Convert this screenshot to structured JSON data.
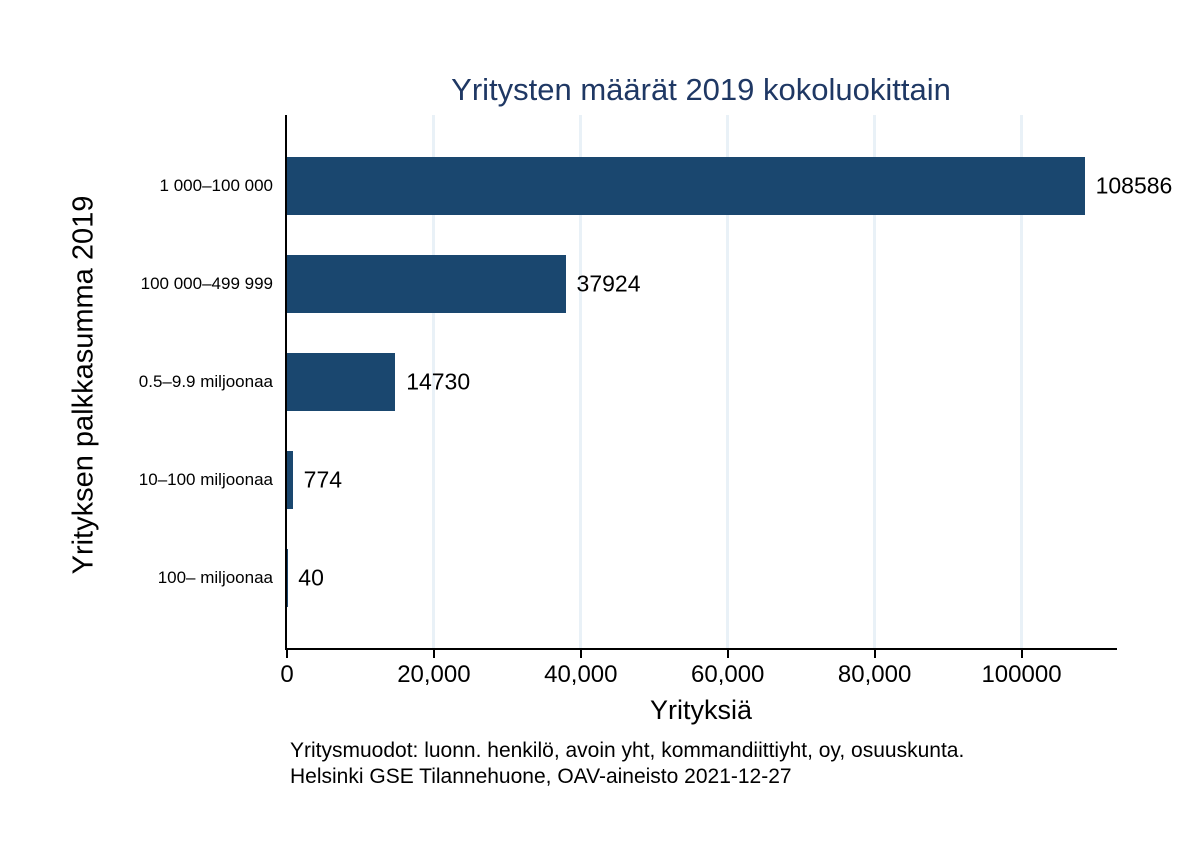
{
  "chart_data": {
    "type": "bar",
    "orientation": "horizontal",
    "title": "Yritysten määrät 2019 kokoluokittain",
    "categories": [
      "1 000–100 000",
      "100 000–499 999",
      "0.5–9.9 miljoonaa",
      "10–100 miljoonaa",
      "100– miljoonaa"
    ],
    "values": [
      108586,
      37924,
      14730,
      774,
      40
    ],
    "value_labels": [
      "108586",
      "37924",
      "14730",
      "774",
      "40"
    ],
    "xlabel": "Yrityksiä",
    "ylabel": "Yrityksen palkkasumma 2019",
    "xlim": [
      0,
      113000
    ],
    "x_ticks": [
      0,
      20000,
      40000,
      60000,
      80000,
      100000
    ],
    "x_tick_labels": [
      "0",
      "20,000",
      "40,000",
      "60,000",
      "80,000",
      "100000"
    ],
    "legend": "none",
    "grid": "vertical gridlines at x ticks",
    "notes": [
      "Yritysmuodot: luonn. henkilö, avoin yht, kommandiittiyht, oy, osuuskunta.",
      "Helsinki GSE Tilannehuone, OAV-aineisto 2021-12-27"
    ],
    "colors": {
      "bar": "#1a476f",
      "gridline": "#e9f1f7",
      "title": "#1f3864",
      "axis": "#000000",
      "background": "#ffffff"
    }
  }
}
